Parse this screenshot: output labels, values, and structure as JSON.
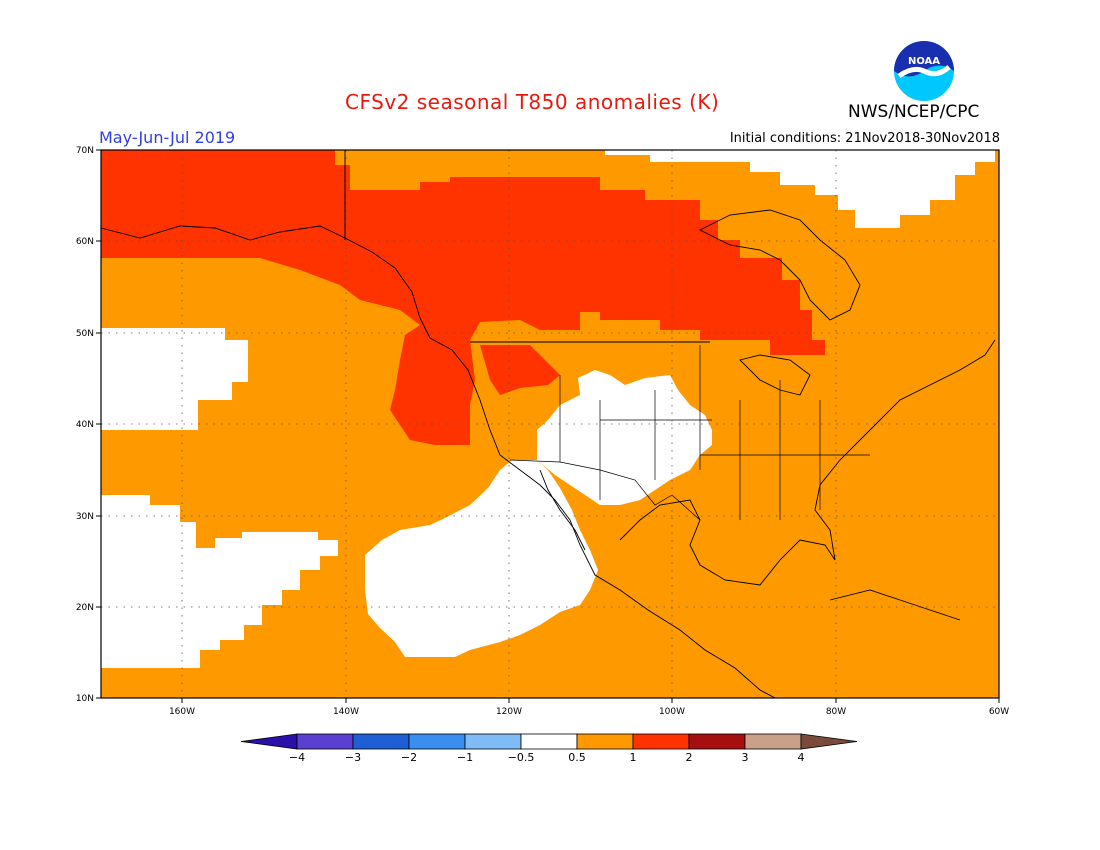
{
  "header": {
    "title": "CFSv2 seasonal T850 anomalies (K)",
    "period": "May-Jun-Jul 2019",
    "initial_conditions": "Initial conditions: 21Nov2018-30Nov2018",
    "agency": "NWS/NCEP/CPC",
    "logo_text": "NOAA"
  },
  "map": {
    "lat_labels": [
      "70N",
      "60N",
      "50N",
      "40N",
      "30N",
      "20N",
      "10N"
    ],
    "lon_labels": [
      "160W",
      "140W",
      "120W",
      "100W",
      "80W",
      "60W"
    ]
  },
  "colorbar": {
    "labels": [
      "-4",
      "-3",
      "-2",
      "-1",
      "-0.5",
      "0.5",
      "1",
      "2",
      "3",
      "4"
    ],
    "colors": [
      "#2a0fa8",
      "#5b3fd1",
      "#1f5fd6",
      "#3a8ef0",
      "#7fbcf5",
      "#ffffff",
      "#ff9900",
      "#ff3300",
      "#a50f0f",
      "#c9a08a",
      "#7a4b3a"
    ]
  },
  "anomaly_colors": {
    "near_zero": "#ffffff",
    "0.5_to_1": "#ff9900",
    "1_to_2": "#ff3300"
  }
}
